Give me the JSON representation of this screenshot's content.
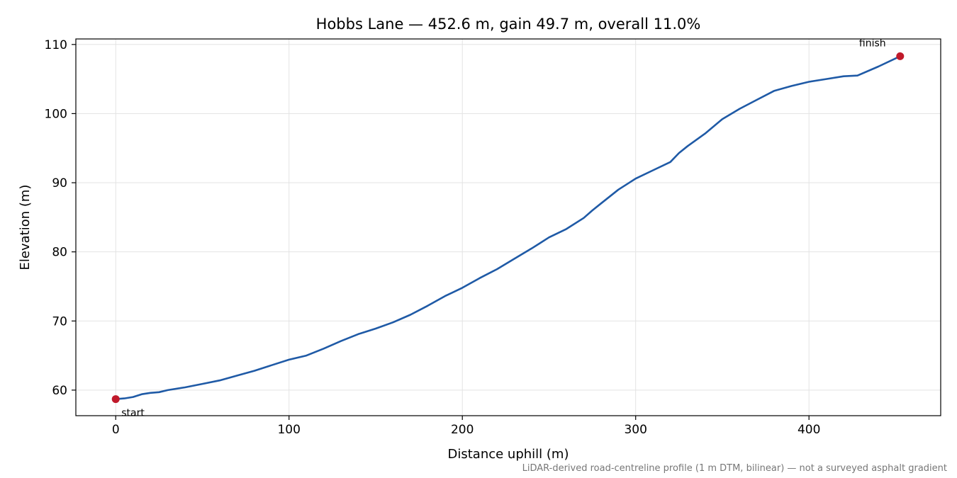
{
  "chart_data": {
    "type": "line",
    "title": "Hobbs Lane — 452.6 m, gain 49.7 m, overall 11.0%",
    "xlabel": "Distance uphill (m)",
    "ylabel": "Elevation (m)",
    "footnote": "LiDAR-derived road-centreline profile (1 m DTM, bilinear) — not a surveyed asphalt gradient",
    "xlim": [
      -23,
      476
    ],
    "ylim": [
      56.3,
      110.8
    ],
    "xticks": [
      0,
      100,
      200,
      300,
      400
    ],
    "yticks": [
      60,
      70,
      80,
      90,
      100,
      110
    ],
    "grid": true,
    "line_color": "#1f5aa6",
    "marker_color": "#c0192a",
    "series": [
      {
        "x": [
          0,
          5,
          10,
          15,
          20,
          25,
          30,
          40,
          50,
          60,
          70,
          80,
          90,
          100,
          110,
          120,
          130,
          140,
          150,
          160,
          170,
          180,
          190,
          200,
          210,
          220,
          230,
          240,
          250,
          260,
          270,
          275,
          280,
          290,
          300,
          310,
          320,
          325,
          330,
          340,
          350,
          360,
          370,
          380,
          390,
          400,
          410,
          420,
          428,
          440,
          452.6
        ],
        "y": [
          58.7,
          58.8,
          59.0,
          59.4,
          59.6,
          59.7,
          60.0,
          60.4,
          60.9,
          61.4,
          62.1,
          62.8,
          63.6,
          64.4,
          65.0,
          66.0,
          67.1,
          68.1,
          68.9,
          69.8,
          70.9,
          72.2,
          73.6,
          74.8,
          76.2,
          77.5,
          79.0,
          80.5,
          82.1,
          83.3,
          84.9,
          86.0,
          87.0,
          89.0,
          90.6,
          91.8,
          93.0,
          94.3,
          95.3,
          97.1,
          99.2,
          100.7,
          102.0,
          103.3,
          104.0,
          104.6,
          105.0,
          105.4,
          105.5,
          106.8,
          108.3
        ]
      }
    ],
    "annotations": [
      {
        "text": "start",
        "x": 0,
        "y": 58.7
      },
      {
        "text": "finish",
        "x": 452.6,
        "y": 108.3
      }
    ]
  }
}
